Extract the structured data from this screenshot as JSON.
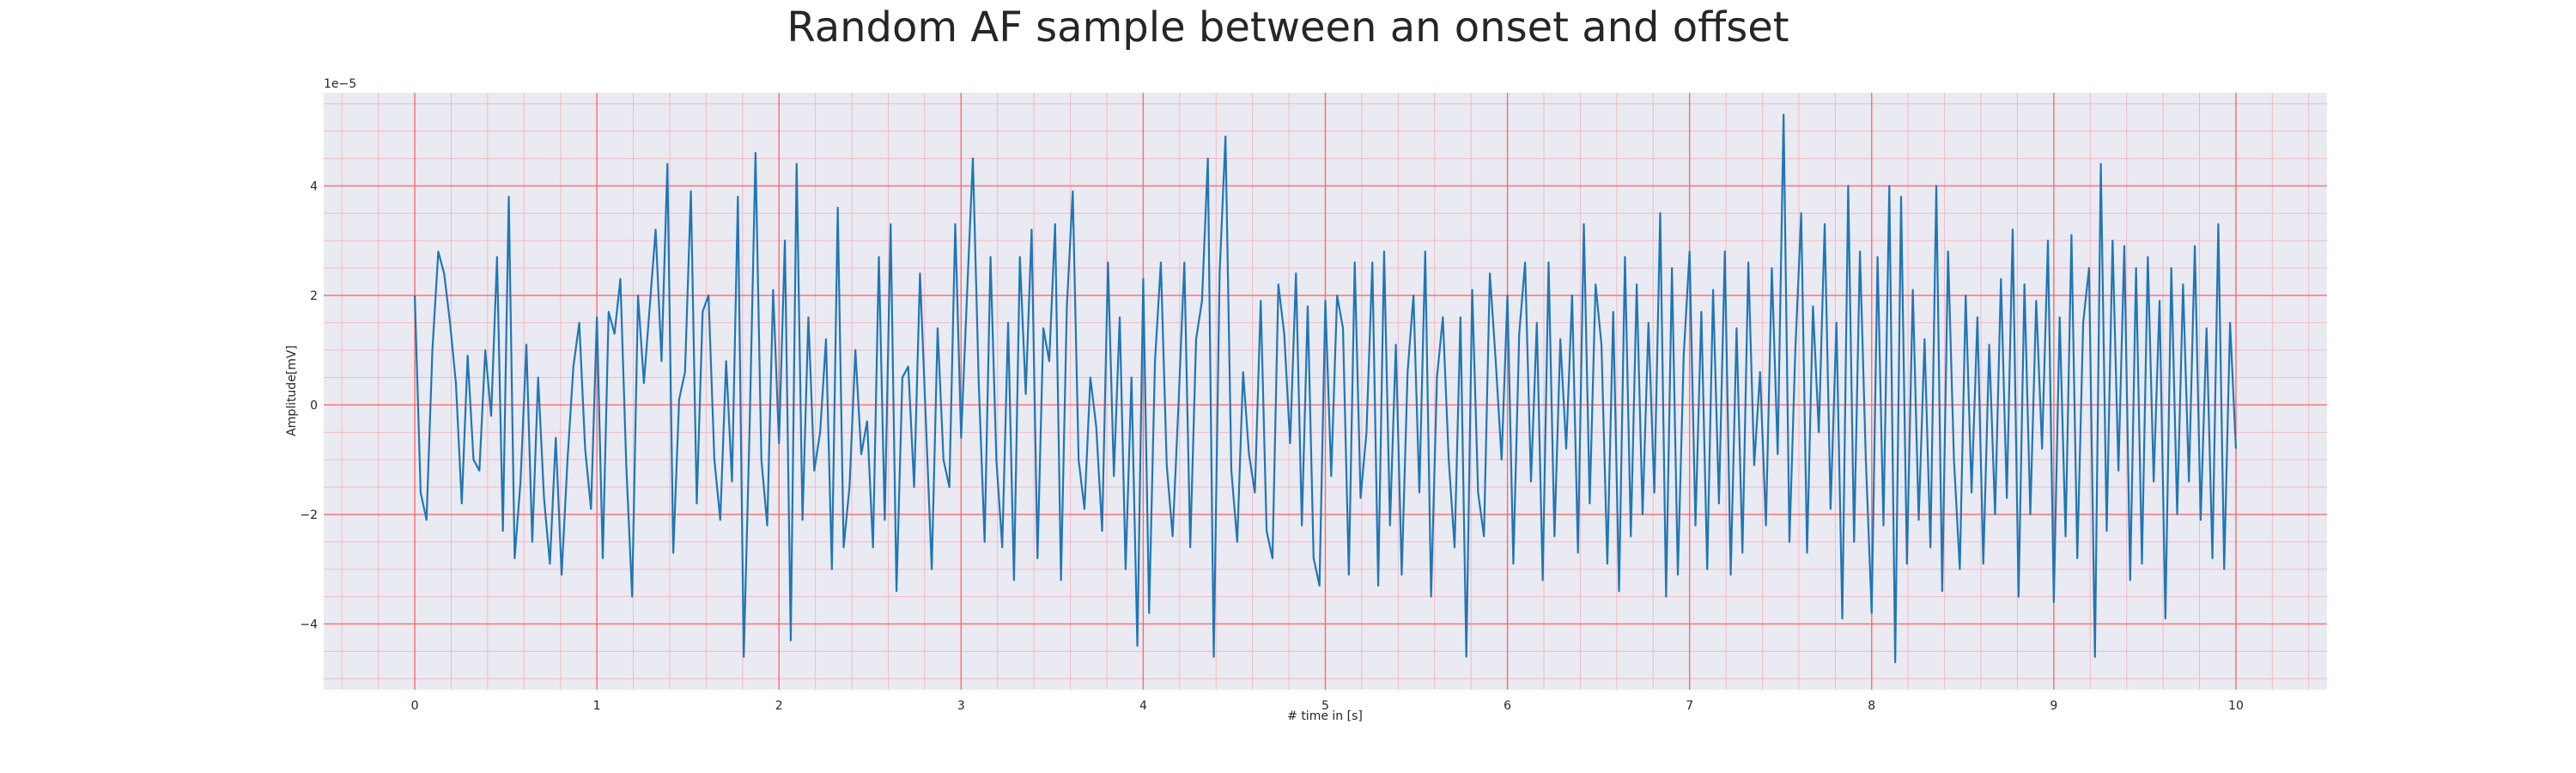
{
  "chart_data": {
    "type": "line",
    "title": "Random AF sample between an onset and offset",
    "xlabel": "# time in [s]",
    "ylabel": "Amplitude[mV]",
    "y_offset_label": "1e−5",
    "xlim": [
      -0.5,
      10.5
    ],
    "ylim": [
      -5.2,
      5.7
    ],
    "x_ticks": [
      0,
      1,
      2,
      3,
      4,
      5,
      6,
      7,
      8,
      9,
      10
    ],
    "x_tick_labels": [
      "0",
      "1",
      "2",
      "3",
      "4",
      "5",
      "6",
      "7",
      "8",
      "9",
      "10"
    ],
    "y_ticks": [
      -4,
      -2,
      0,
      2,
      4
    ],
    "y_tick_labels": [
      "−4",
      "−2",
      "0",
      "2",
      "4"
    ],
    "grid": true,
    "colors": {
      "background": "#eaeaf2",
      "major_grid": "#ff6b6b",
      "minor_grid": "#f4b9c3",
      "line": "#1f77b4"
    },
    "series": [
      {
        "name": "AF sample",
        "x_start": 0,
        "x_step": 0.01,
        "values": [
          2.0,
          -1.6,
          -2.1,
          1.0,
          2.8,
          2.4,
          1.5,
          0.4,
          -1.8,
          0.9,
          -1.0,
          -1.2,
          1.0,
          -0.2,
          2.7,
          -2.3,
          3.8,
          -2.8,
          -1.4,
          1.1,
          -2.5,
          0.5,
          -1.7,
          -2.9,
          -0.6,
          -3.1,
          -1.0,
          0.7,
          1.5,
          -0.8,
          -1.9,
          1.6,
          -2.8,
          1.7,
          1.3,
          2.3,
          -1.1,
          -3.5,
          2.0,
          0.4,
          1.8,
          3.2,
          0.8,
          4.4,
          -2.7,
          0.1,
          0.6,
          3.9,
          -1.8,
          1.7,
          2.0,
          -1.0,
          -2.1,
          0.8,
          -1.4,
          3.8,
          -4.6,
          -0.4,
          4.6,
          -1.0,
          -2.2,
          2.1,
          -0.7,
          3.0,
          -4.3,
          4.4,
          -2.1,
          1.6,
          -1.2,
          -0.5,
          1.2,
          -3.0,
          3.6,
          -2.6,
          -1.5,
          1.0,
          -0.9,
          -0.3,
          -2.6,
          2.7,
          -2.1,
          3.3,
          -3.4,
          0.5,
          0.7,
          -1.5,
          2.4,
          -0.3,
          -3.0,
          1.4,
          -1.0,
          -1.5,
          3.3,
          -0.6,
          2.0,
          4.5,
          0.4,
          -2.5,
          2.7,
          -1.0,
          -2.6,
          1.5,
          -3.2,
          2.7,
          0.2,
          3.2,
          -2.8,
          1.4,
          0.8,
          3.3,
          -3.2,
          1.8,
          3.9,
          -1.0,
          -1.9,
          0.5,
          -0.4,
          -2.3,
          2.6,
          -1.3,
          1.6,
          -3.0,
          0.5,
          -4.4,
          2.3,
          -3.8,
          0.8,
          2.6,
          -1.1,
          -2.4,
          0.0,
          2.6,
          -2.6,
          1.2,
          1.9,
          4.5,
          -4.6,
          2.4,
          4.9,
          -1.2,
          -2.5,
          0.6,
          -0.9,
          -1.6,
          1.9,
          -2.3,
          -2.8,
          2.2,
          1.3,
          -0.7,
          2.4,
          -2.2,
          1.8,
          -2.8,
          -3.3,
          1.9,
          -1.3,
          2.0,
          1.4,
          -3.1,
          2.6,
          -1.7,
          -0.5,
          2.6,
          -3.3,
          2.8,
          -2.2,
          1.1,
          -3.1,
          0.6,
          2.0,
          -1.6,
          2.8,
          -3.5,
          0.5,
          1.6,
          -1.0,
          -2.6,
          1.6,
          -4.6,
          2.1,
          -1.6,
          -2.4,
          2.4,
          0.8,
          -1.0,
          2.0,
          -2.9,
          1.3,
          2.6,
          -1.4,
          1.5,
          -3.2,
          2.6,
          -2.4,
          1.2,
          -0.8,
          2.0,
          -2.7,
          3.3,
          -1.8,
          2.2,
          1.1,
          -2.9,
          1.7,
          -3.4,
          2.7,
          -2.4,
          2.2,
          -2.0,
          1.5,
          -1.6,
          3.5,
          -3.5,
          2.5,
          -3.1,
          0.9,
          2.8,
          -2.2,
          1.7,
          -3.0,
          2.1,
          -1.8,
          2.8,
          -3.1,
          1.4,
          -2.7,
          2.6,
          -1.1,
          0.6,
          -2.2,
          2.5,
          -0.9,
          5.3,
          -2.5,
          1.0,
          3.5,
          -2.7,
          1.8,
          -0.5,
          3.3,
          -1.9,
          1.5,
          -3.9,
          4.0,
          -2.5,
          2.8,
          -1.0,
          -3.8,
          2.7,
          -2.2,
          4.0,
          -4.7,
          3.8,
          -2.9,
          2.1,
          -2.1,
          1.2,
          -2.6,
          4.0,
          -3.4,
          2.8,
          -1.0,
          -3.0,
          2.0,
          -1.6,
          1.6,
          -2.9,
          1.1,
          -2.0,
          2.3,
          -1.7,
          3.2,
          -3.5,
          2.2,
          -2.0,
          1.9,
          -0.8,
          3.0,
          -3.6,
          1.6,
          -2.4,
          3.1,
          -2.8,
          1.5,
          2.5,
          -4.6,
          4.4,
          -2.3,
          3.0,
          -1.2,
          2.9,
          -3.2,
          2.5,
          -2.9,
          2.7,
          -1.4,
          1.9,
          -3.9,
          2.5,
          -2.0,
          2.2,
          -1.4,
          2.9,
          -2.1,
          1.4,
          -2.8,
          3.3,
          -3.0,
          1.5,
          -0.8
        ]
      }
    ]
  }
}
